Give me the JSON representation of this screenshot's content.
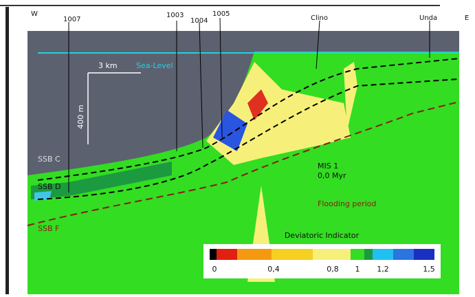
{
  "header": {
    "west": "W",
    "east": "E"
  },
  "wells": [
    "1007",
    "1003",
    "1004",
    "1005",
    "Clino",
    "Unda"
  ],
  "scale": {
    "horizontal": "3 km",
    "vertical": "400 m"
  },
  "horizons": [
    "SSB C",
    "SSB D",
    "SSB F"
  ],
  "labels": {
    "sea_level": "Sea-Level",
    "mis": "MIS 1",
    "age": "0,0 Myr",
    "flooding": "Flooding period"
  },
  "colorbar": {
    "title": "Deviatoric Indicator",
    "ticks": [
      "0",
      "0,4",
      "0,8",
      "1",
      "1,2",
      "1,5"
    ]
  }
}
